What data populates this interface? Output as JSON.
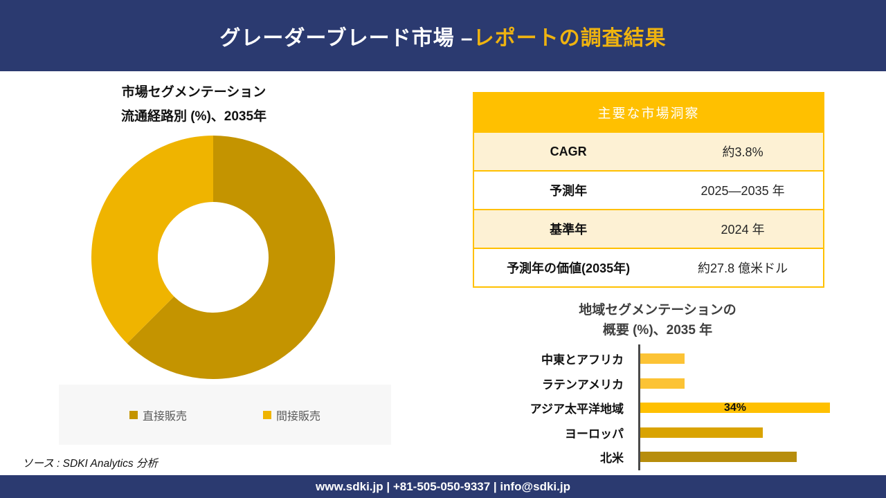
{
  "header": {
    "title_part1": "グレーダーブレード市場 –",
    "title_part2": "レポートの調査結果"
  },
  "insights_table": {
    "title": "主要な市場洞察",
    "rows": [
      {
        "label": "CAGR",
        "value": "約3.8%"
      },
      {
        "label": "予測年",
        "value": "2025—2035 年"
      },
      {
        "label": "基準年",
        "value": "2024 年"
      },
      {
        "label": "予測年の価値(2035年)",
        "value": "約27.8 億米ドル"
      }
    ]
  },
  "chart_data": [
    {
      "type": "pie",
      "subtype": "donut",
      "title_line1": "市場セグメンテーション",
      "title_line2": "流通経路別 (%)、2035年",
      "labels": [
        "直接販売",
        "間接販売"
      ],
      "values": [
        62.5,
        37.5
      ],
      "colors": [
        "#C49400",
        "#EFB400"
      ],
      "legend_position": "bottom"
    },
    {
      "type": "bar",
      "orientation": "horizontal",
      "title_line1": "地域セグメンテーションの",
      "title_line2": "概要 (%)、2035 年",
      "categories": [
        "中東とアフリカ",
        "ラテンアメリカ",
        "アジア太平洋地域",
        "ヨーロッパ",
        "北米"
      ],
      "values": [
        8,
        8,
        34,
        22,
        28
      ],
      "value_labels": [
        "",
        "",
        "34%",
        "",
        ""
      ],
      "colors": [
        "#FCC335",
        "#FCC335",
        "#FFC001",
        "#D9A301",
        "#B78D0C"
      ],
      "xlim": [
        0,
        36
      ],
      "grid": false,
      "legend": false
    }
  ],
  "source": "ソース : SDKI Analytics 分析",
  "footer": "www.sdki.jp | +81-505-050-9337 | info@sdki.jp",
  "colors": {
    "navy": "#2B3A70",
    "header_gold": "#EFB310",
    "table_gold": "#FFC000",
    "cream": "#FDF1D4",
    "legend_bg": "#F7F7F7",
    "legend_text": "#595959"
  }
}
